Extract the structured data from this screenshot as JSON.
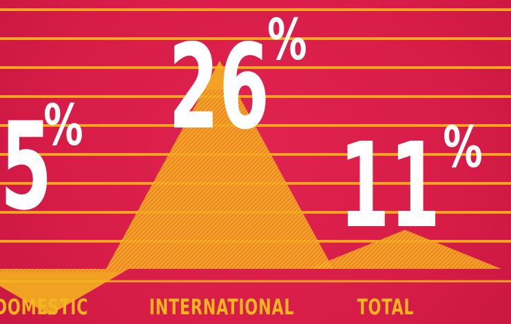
{
  "chart_data": {
    "type": "area",
    "categories": [
      "DOMESTIC",
      "INTERNATIONAL",
      "TOTAL"
    ],
    "values": [
      5,
      26,
      11
    ],
    "value_labels": [
      {
        "number": "5",
        "unit": "%"
      },
      {
        "number": "26",
        "unit": "%"
      },
      {
        "number": "11",
        "unit": "%"
      }
    ],
    "ylim": [
      0,
      30
    ],
    "grid": true,
    "title": "",
    "xlabel": "",
    "ylabel": ""
  },
  "colors": {
    "background": "#d91e4a",
    "grid": "#f4a41f",
    "mark": "#f5b51f",
    "value_text": "#ffffff",
    "label_text": "#f5b51f"
  }
}
